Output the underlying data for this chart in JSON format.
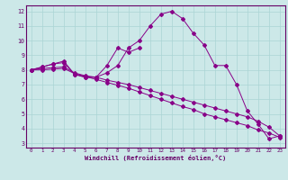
{
  "xlabel": "Windchill (Refroidissement éolien,°C)",
  "background_color": "#cce8e8",
  "grid_color": "#aad4d4",
  "line_color": "#880088",
  "xlim": [
    -0.5,
    23.5
  ],
  "ylim": [
    2.7,
    12.4
  ],
  "yticks": [
    3,
    4,
    5,
    6,
    7,
    8,
    9,
    10,
    11,
    12
  ],
  "xticks": [
    0,
    1,
    2,
    3,
    4,
    5,
    6,
    7,
    8,
    9,
    10,
    11,
    12,
    13,
    14,
    15,
    16,
    17,
    18,
    19,
    20,
    21,
    22,
    23
  ],
  "series": [
    [
      8.0,
      8.2,
      8.4,
      8.5,
      7.7,
      7.5,
      7.5,
      7.8,
      8.3,
      9.5,
      10.0,
      11.0,
      11.8,
      12.0,
      11.5,
      10.5,
      9.7,
      8.3,
      8.3,
      7.0,
      5.2,
      4.3,
      3.3,
      3.5
    ],
    [
      8.0,
      8.2,
      8.4,
      8.6,
      7.7,
      7.5,
      7.5,
      8.3,
      9.5,
      9.2,
      9.5,
      null,
      null,
      null,
      null,
      null,
      null,
      null,
      null,
      null,
      null,
      null,
      null,
      null
    ],
    [
      8.0,
      8.1,
      8.15,
      8.2,
      7.8,
      7.6,
      7.5,
      7.3,
      7.15,
      7.0,
      6.8,
      6.6,
      6.4,
      6.2,
      6.0,
      5.8,
      5.6,
      5.4,
      5.2,
      5.0,
      4.8,
      4.5,
      4.1,
      3.5
    ],
    [
      8.0,
      8.0,
      8.05,
      8.1,
      7.75,
      7.55,
      7.35,
      7.15,
      6.95,
      6.75,
      6.5,
      6.25,
      6.0,
      5.75,
      5.5,
      5.3,
      5.0,
      4.8,
      4.6,
      4.4,
      4.2,
      3.9,
      3.7,
      3.4
    ]
  ]
}
